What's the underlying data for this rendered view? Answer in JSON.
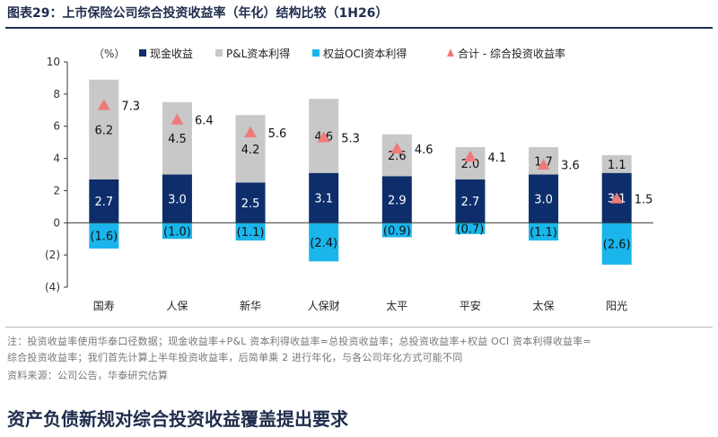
{
  "figure": {
    "label": "图表29：",
    "title": "上市保险公司综合投资收益率（年化）结构比较（1H26）"
  },
  "notes": {
    "line1": "注：投资收益率使用华泰口径数据；现金收益率+P&L 资本利得收益率=总投资收益率；总投资收益率+权益 OCI 资本利得收益率=",
    "line2": "综合投资收益率；我们首先计算上半年投资收益率，后简单乘 2 进行年化，与各公司年化方式可能不同",
    "source": "资料来源：公司公告，华泰研究估算"
  },
  "headline": "资产负债新规对综合投资收益覆盖提出要求",
  "colors": {
    "cash": "#0d2e6b",
    "pl": "#c8c8c8",
    "oci": "#19b5eb",
    "total": "#f07a7a",
    "axis": "#333333"
  },
  "chart_data": {
    "type": "bar",
    "stacked": true,
    "ylabel": "（%）",
    "ylim": [
      -4,
      10
    ],
    "yticks": [
      10,
      8,
      6,
      4,
      2,
      0,
      -2,
      -4
    ],
    "ytick_labels": [
      "10",
      "8",
      "6",
      "4",
      "2",
      "0",
      "(2)",
      "(4)"
    ],
    "categories": [
      "国寿",
      "人保",
      "新华",
      "人保财",
      "太平",
      "平安",
      "太保",
      "阳光"
    ],
    "series": [
      {
        "name": "现金收益",
        "key": "cash",
        "values": [
          2.7,
          3.0,
          2.5,
          3.1,
          2.9,
          2.7,
          3.0,
          3.1
        ],
        "labels": [
          "2.7",
          "3.0",
          "2.5",
          "3.1",
          "2.9",
          "2.7",
          "3.0",
          "3.1"
        ]
      },
      {
        "name": "P&L资本利得",
        "key": "pl",
        "values": [
          6.2,
          4.5,
          4.2,
          4.6,
          2.6,
          2.0,
          1.7,
          1.1
        ],
        "labels": [
          "6.2",
          "4.5",
          "4.2",
          "4.6",
          "2.6",
          "2.0",
          "1.7",
          "1.1"
        ]
      },
      {
        "name": "权益OCI资本利得",
        "key": "oci",
        "values": [
          -1.6,
          -1.0,
          -1.1,
          -2.4,
          -0.9,
          -0.7,
          -1.1,
          -2.6
        ],
        "labels": [
          "(1.6)",
          "(1.0)",
          "(1.1)",
          "(2.4)",
          "(0.9)",
          "(0.7)",
          "(1.1)",
          "(2.6)"
        ]
      },
      {
        "name": "合计 - 综合投资收益率",
        "key": "total",
        "type": "marker",
        "values": [
          7.3,
          6.4,
          5.6,
          5.3,
          4.6,
          4.1,
          3.6,
          1.5
        ],
        "labels": [
          "7.3",
          "6.4",
          "5.6",
          "5.3",
          "4.6",
          "4.1",
          "3.6",
          "1.5"
        ]
      }
    ],
    "legend_position": "top",
    "grid": false
  }
}
